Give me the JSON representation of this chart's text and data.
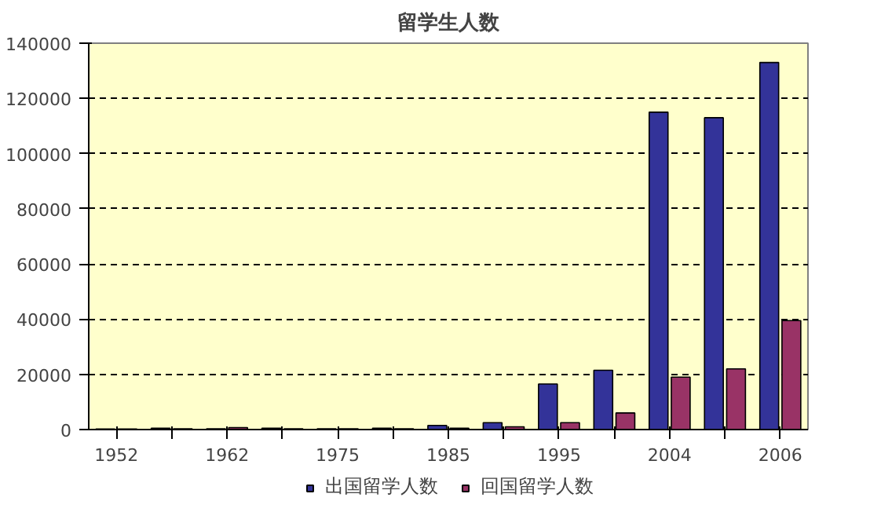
{
  "chart_data": {
    "type": "bar",
    "title": "留学生人数",
    "categories": [
      "1952",
      null,
      "1962",
      null,
      "1975",
      null,
      "1985",
      null,
      "1995",
      null,
      "2004",
      null,
      "2006"
    ],
    "series": [
      {
        "name": "出国留学人数",
        "color": "#333399",
        "values": [
          200,
          500,
          300,
          500,
          300,
          500,
          1500,
          2500,
          16500,
          21500,
          115000,
          113000,
          133000
        ]
      },
      {
        "name": "回国留学人数",
        "color": "#993366",
        "values": [
          200,
          300,
          700,
          300,
          300,
          300,
          500,
          1000,
          2500,
          6000,
          19000,
          22000,
          39500
        ]
      }
    ],
    "ylim": [
      0,
      140000
    ],
    "yticks": [
      0,
      20000,
      40000,
      60000,
      80000,
      100000,
      120000,
      140000
    ],
    "grid": "y",
    "legend": "bottom"
  }
}
